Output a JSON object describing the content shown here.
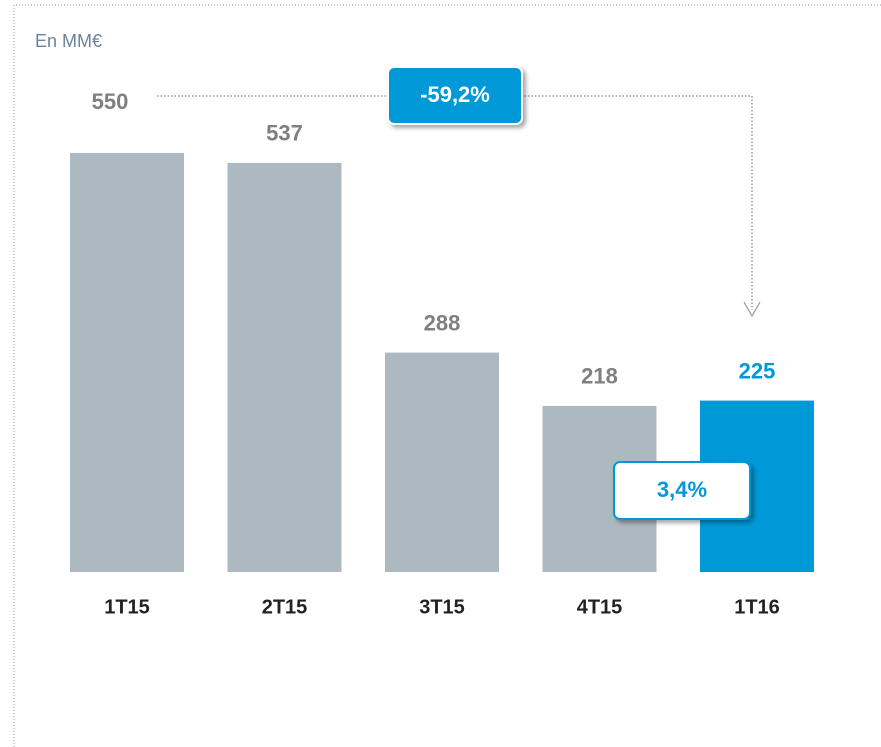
{
  "chart_data": {
    "type": "bar",
    "subtitle": "En MM€",
    "categories": [
      "1T15",
      "2T15",
      "3T15",
      "4T15",
      "1T16"
    ],
    "values": [
      550,
      537,
      288,
      218,
      225
    ],
    "colors": [
      "#adb9c0",
      "#adb9c0",
      "#adb9c0",
      "#adb9c0",
      "#0099d8"
    ],
    "label_colors": [
      "#7f7f7f",
      "#7f7f7f",
      "#7f7f7f",
      "#7f7f7f",
      "#0099d8"
    ],
    "annotations": [
      "-59,2%",
      "3,4%"
    ]
  }
}
